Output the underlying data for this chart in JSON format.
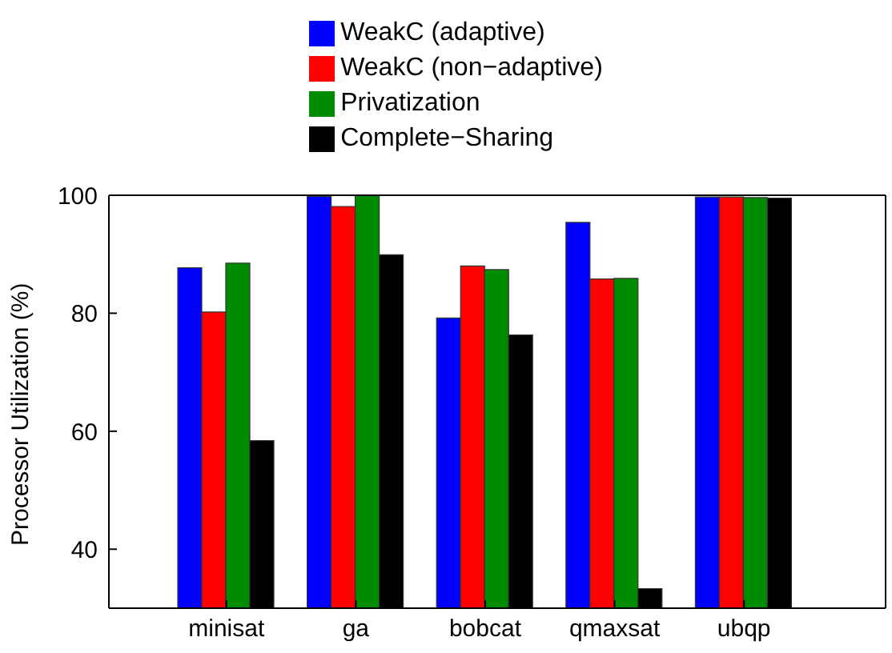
{
  "chart_data": {
    "type": "bar",
    "ylabel": "Processor Utilization (%)",
    "categories": [
      "minisat",
      "ga",
      "bobcat",
      "qmaxsat",
      "ubqp"
    ],
    "series": [
      {
        "name": "WeakC (adaptive)",
        "color": "#0000ff",
        "values": [
          87.7,
          99.8,
          79.2,
          95.4,
          99.7
        ]
      },
      {
        "name": "WeakC (non−adaptive)",
        "color": "#ff0000",
        "values": [
          80.2,
          98.1,
          88.0,
          85.8,
          99.7
        ]
      },
      {
        "name": "Privatization",
        "color": "#008c00",
        "values": [
          88.5,
          100,
          87.4,
          85.9,
          99.6
        ]
      },
      {
        "name": "Complete−Sharing",
        "color": "#000000",
        "values": [
          58.4,
          89.9,
          76.3,
          33.3,
          99.5
        ]
      }
    ],
    "ylim": [
      30,
      100
    ],
    "yticks": [
      40,
      60,
      80,
      100
    ],
    "legend": "top"
  }
}
